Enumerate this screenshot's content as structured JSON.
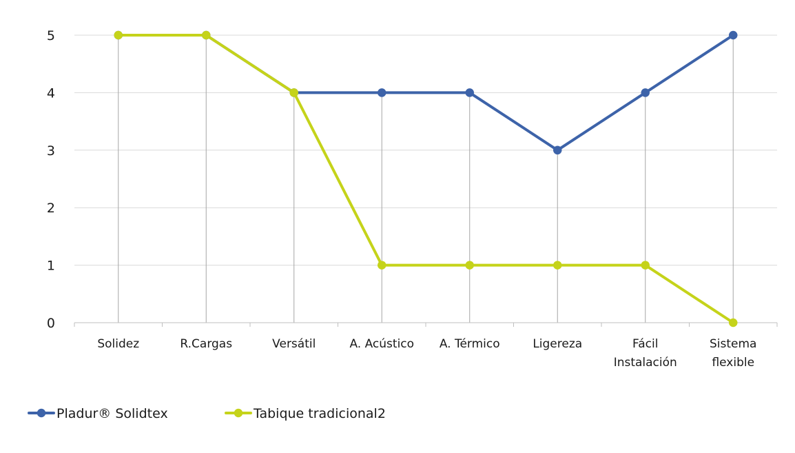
{
  "chart_data": {
    "type": "line",
    "title": "",
    "xlabel": "",
    "ylabel": "",
    "categories": [
      [
        "Solidez"
      ],
      [
        "R.Cargas"
      ],
      [
        "Versátil"
      ],
      [
        "A. Acústico"
      ],
      [
        "A. Térmico"
      ],
      [
        "Ligereza"
      ],
      [
        "Fácil",
        "Instalación"
      ],
      [
        "Sistema",
        "flexible"
      ]
    ],
    "ylim": [
      0,
      5
    ],
    "yticks": [
      0,
      1,
      2,
      3,
      4,
      5
    ],
    "grid": {
      "horizontal": true,
      "vertical_drop_lines": true
    },
    "legend_position": "bottom-left",
    "series": [
      {
        "name": "Pladur® Solidtex",
        "color": "#3d63a9",
        "marker_fill": "#3d63a9",
        "values": [
          5,
          5,
          4,
          4,
          4,
          3,
          4,
          5
        ]
      },
      {
        "name": "Tabique tradicional2",
        "color": "#c5d31a",
        "marker_fill": "#c5d31a",
        "values": [
          5,
          5,
          4,
          1,
          1,
          1,
          1,
          0
        ]
      }
    ]
  }
}
